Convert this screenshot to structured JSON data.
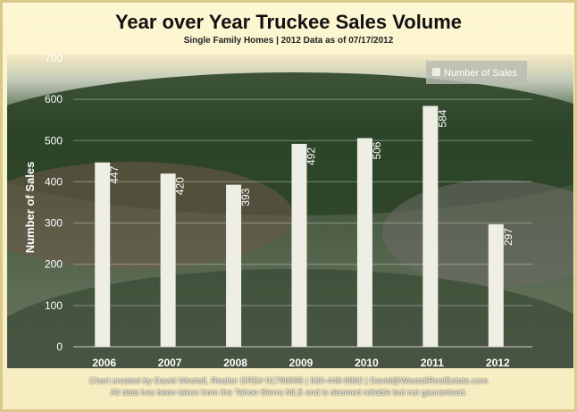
{
  "chart_data": {
    "type": "bar",
    "title": "Year over Year Truckee Sales Volume",
    "subtitle": "Single Family Homes | 2012 Data as of 07/17/2012",
    "ylabel": "Number of Sales",
    "xlabel": "",
    "categories": [
      "2006",
      "2007",
      "2008",
      "2009",
      "2010",
      "2011",
      "2012"
    ],
    "series": [
      {
        "name": "Number of Sales",
        "values": [
          447,
          420,
          393,
          492,
          506,
          584,
          297
        ]
      }
    ],
    "ylim": [
      0,
      700
    ],
    "yticks": [
      0,
      100,
      200,
      300,
      400,
      500,
      600,
      700
    ],
    "grid": true,
    "legend_position": "top-right",
    "bar_color": "#eeeee4"
  },
  "footer": {
    "line1": "Chart created by David Westall, Realtor DRE# 01796995 | 530-448-9882 | David@WestallRealEstate.com",
    "line2": "All data has been taken from the Tahoe-Sierra MLS and is deemed reliable but not gauranteed."
  }
}
